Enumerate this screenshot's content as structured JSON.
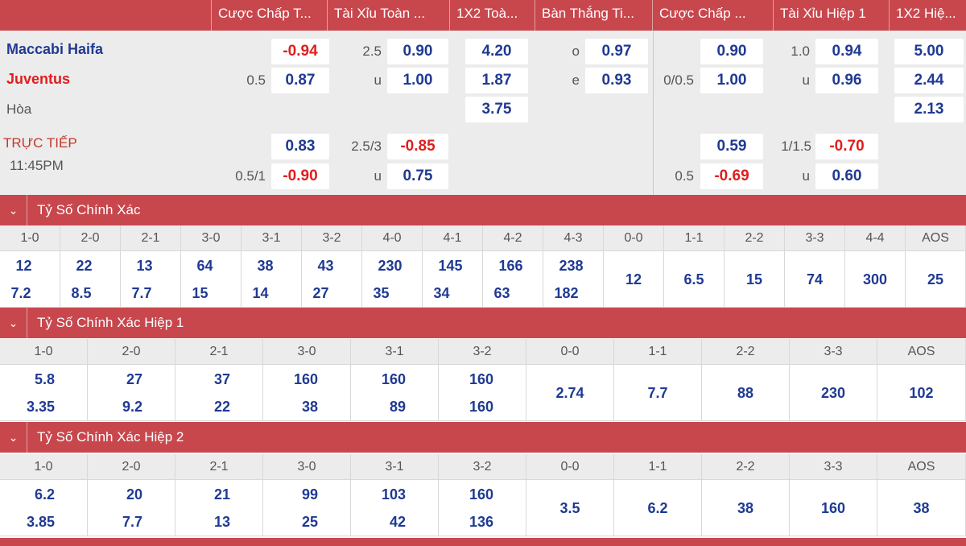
{
  "header": {
    "columns": [
      "Cược Chấp T...",
      "Tài Xỉu Toàn ...",
      "1X2 Toà...",
      "Bàn Thắng Ti...",
      "Cược Chấp ...",
      "Tài Xỉu Hiệp 1",
      "1X2 Hiệ..."
    ]
  },
  "match": {
    "home": "Maccabi Haifa",
    "away": "Juventus",
    "draw": "Hòa",
    "status": "TRỰC TIẾP",
    "time": "11:45PM"
  },
  "odds": {
    "r1": {
      "hdp_ft": "-0.94",
      "ou_ft_line": "2.5",
      "ou_ft": "0.90",
      "x12_ft": "4.20",
      "goals_side": "o",
      "goals": "0.97",
      "hdp_h1": "0.90",
      "ou_h1_line": "1.0",
      "ou_h1": "0.94",
      "x12_h1": "5.00"
    },
    "r2": {
      "hdp_ft_line": "0.5",
      "hdp_ft": "0.87",
      "ou_ft_side": "u",
      "ou_ft": "1.00",
      "x12_ft": "1.87",
      "goals_side": "e",
      "goals": "0.93",
      "hdp_h1_line": "0/0.5",
      "hdp_h1": "1.00",
      "ou_h1_side": "u",
      "ou_h1": "0.96",
      "x12_h1": "2.44"
    },
    "r3": {
      "x12_ft": "3.75",
      "x12_h1": "2.13"
    },
    "r4": {
      "hdp_ft": "0.83",
      "ou_ft_line": "2.5/3",
      "ou_ft": "-0.85",
      "hdp_h1": "0.59",
      "ou_h1_line": "1/1.5",
      "ou_h1": "-0.70"
    },
    "r5": {
      "hdp_ft_line": "0.5/1",
      "hdp_ft": "-0.90",
      "ou_ft_side": "u",
      "ou_ft": "0.75",
      "hdp_h1_line": "0.5",
      "hdp_h1": "-0.69",
      "ou_h1_side": "u",
      "ou_h1": "0.60"
    }
  },
  "sections": [
    {
      "title": "Tỷ Số Chính Xác",
      "cols": [
        {
          "score": "1-0",
          "a": "12",
          "b": "7.2"
        },
        {
          "score": "2-0",
          "a": "22",
          "b": "8.5"
        },
        {
          "score": "2-1",
          "a": "13",
          "b": "7.7"
        },
        {
          "score": "3-0",
          "a": "64",
          "b": "15"
        },
        {
          "score": "3-1",
          "a": "38",
          "b": "14"
        },
        {
          "score": "3-2",
          "a": "43",
          "b": "27"
        },
        {
          "score": "4-0",
          "a": "230",
          "b": "35"
        },
        {
          "score": "4-1",
          "a": "145",
          "b": "34"
        },
        {
          "score": "4-2",
          "a": "166",
          "b": "63"
        },
        {
          "score": "4-3",
          "a": "238",
          "b": "182"
        },
        {
          "score": "0-0",
          "c": "12"
        },
        {
          "score": "1-1",
          "c": "6.5"
        },
        {
          "score": "2-2",
          "c": "15"
        },
        {
          "score": "3-3",
          "c": "74"
        },
        {
          "score": "4-4",
          "c": "300"
        },
        {
          "score": "AOS",
          "c": "25"
        }
      ]
    },
    {
      "title": "Tỷ Số Chính Xác Hiệp 1",
      "cols": [
        {
          "score": "1-0",
          "a": "5.8",
          "b": "3.35"
        },
        {
          "score": "2-0",
          "a": "27",
          "b": "9.2"
        },
        {
          "score": "2-1",
          "a": "37",
          "b": "22"
        },
        {
          "score": "3-0",
          "a": "160",
          "b": "38"
        },
        {
          "score": "3-1",
          "a": "160",
          "b": "89"
        },
        {
          "score": "3-2",
          "a": "160",
          "b": "160"
        },
        {
          "score": "0-0",
          "c": "2.74"
        },
        {
          "score": "1-1",
          "c": "7.7"
        },
        {
          "score": "2-2",
          "c": "88"
        },
        {
          "score": "3-3",
          "c": "230"
        },
        {
          "score": "AOS",
          "c": "102"
        }
      ]
    },
    {
      "title": "Tỷ Số Chính Xác Hiệp 2",
      "cols": [
        {
          "score": "1-0",
          "a": "6.2",
          "b": "3.85"
        },
        {
          "score": "2-0",
          "a": "20",
          "b": "7.7"
        },
        {
          "score": "2-1",
          "a": "21",
          "b": "13"
        },
        {
          "score": "3-0",
          "a": "99",
          "b": "25"
        },
        {
          "score": "3-1",
          "a": "103",
          "b": "42"
        },
        {
          "score": "3-2",
          "a": "160",
          "b": "136"
        },
        {
          "score": "0-0",
          "c": "3.5"
        },
        {
          "score": "1-1",
          "c": "6.2"
        },
        {
          "score": "2-2",
          "c": "38"
        },
        {
          "score": "3-3",
          "c": "160"
        },
        {
          "score": "AOS",
          "c": "38"
        }
      ]
    }
  ],
  "colors": {
    "accent": "#c8474d",
    "odds_blue": "#1f3a93",
    "odds_red": "#e01e1e",
    "home_team": "#1f3a93",
    "away_team": "#e01e1e"
  },
  "icons": {
    "section_toggle": "chevron-down-icon"
  }
}
